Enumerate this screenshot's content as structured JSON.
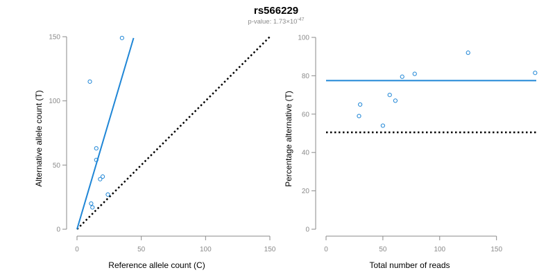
{
  "title": "rs566229",
  "subtitle": {
    "prefix": "p-value: 1.73×10",
    "exponent": "-47"
  },
  "colors": {
    "accent": "#1f86d6",
    "reference_line": "#000000",
    "axis": "#8a8a8a"
  },
  "chart_data": [
    {
      "type": "scatter",
      "xlabel": "Reference allele count (C)",
      "ylabel": "Alternative allele count (T)",
      "xlim": [
        0,
        150
      ],
      "ylim": [
        0,
        150
      ],
      "xticks": [
        0,
        50,
        100,
        150
      ],
      "yticks": [
        0,
        50,
        100,
        150
      ],
      "points": [
        {
          "x": 35,
          "y": 149
        },
        {
          "x": 10,
          "y": 115
        },
        {
          "x": 15,
          "y": 63
        },
        {
          "x": 15,
          "y": 54
        },
        {
          "x": 20,
          "y": 41
        },
        {
          "x": 18,
          "y": 39
        },
        {
          "x": 24,
          "y": 27
        },
        {
          "x": 11,
          "y": 20
        },
        {
          "x": 12,
          "y": 17
        }
      ],
      "fit_line": {
        "x": [
          0,
          44
        ],
        "y": [
          0,
          149
        ]
      },
      "reference_line": {
        "x": [
          0,
          150
        ],
        "y": [
          0,
          150
        ]
      }
    },
    {
      "type": "scatter",
      "xlabel": "Total number of reads",
      "ylabel": "Percentage alternative (T)",
      "xlim": [
        0,
        185
      ],
      "ylim": [
        0,
        100
      ],
      "xticks": [
        0,
        50,
        100,
        150
      ],
      "yticks": [
        0,
        20,
        40,
        60,
        80,
        100
      ],
      "points": [
        {
          "x": 29,
          "y": 59
        },
        {
          "x": 30,
          "y": 65
        },
        {
          "x": 50,
          "y": 54
        },
        {
          "x": 56,
          "y": 70
        },
        {
          "x": 61,
          "y": 67
        },
        {
          "x": 67,
          "y": 79.5
        },
        {
          "x": 78,
          "y": 81
        },
        {
          "x": 125,
          "y": 92
        },
        {
          "x": 184,
          "y": 81.5
        }
      ],
      "fit_line": {
        "y": 77.5
      },
      "reference_line": {
        "y": 50.5
      }
    }
  ]
}
